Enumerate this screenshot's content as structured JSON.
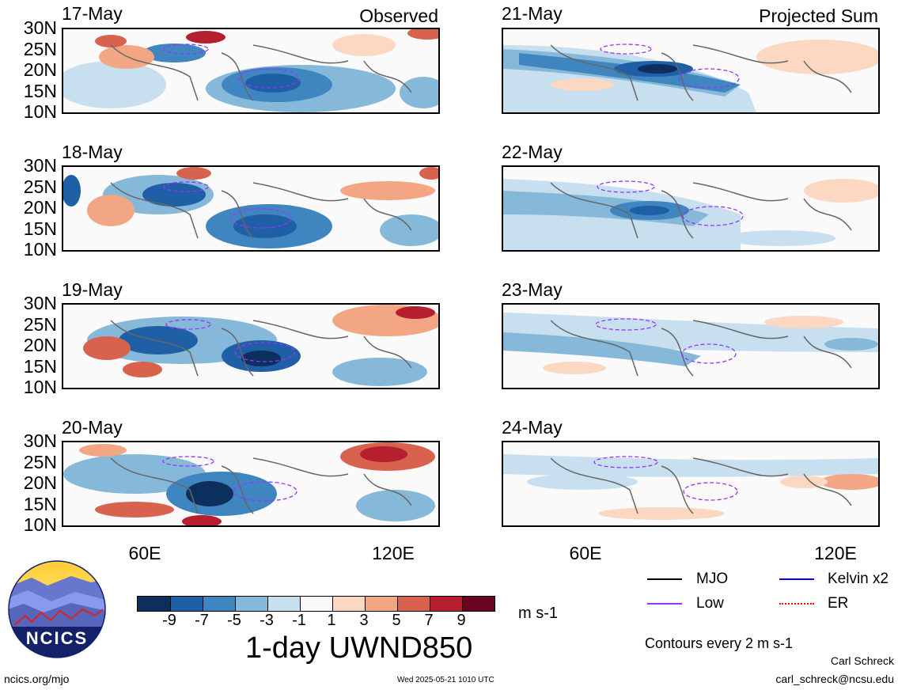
{
  "observed_label": "Observed",
  "projected_label": "Projected Sum",
  "panels_observed": [
    {
      "date": "17-May"
    },
    {
      "date": "18-May"
    },
    {
      "date": "19-May"
    },
    {
      "date": "20-May"
    }
  ],
  "panels_projected": [
    {
      "date": "21-May"
    },
    {
      "date": "22-May"
    },
    {
      "date": "23-May"
    },
    {
      "date": "24-May"
    }
  ],
  "lat_labels": [
    "30N",
    "25N",
    "20N",
    "15N",
    "10N"
  ],
  "lon_labels": [
    "60E",
    "120E"
  ],
  "colorbar": {
    "title": "1-day UWND850",
    "units": "m s-1",
    "tick_labels": [
      "-9",
      "-7",
      "-5",
      "-3",
      "-1",
      "1",
      "3",
      "5",
      "7",
      "9"
    ],
    "colors": [
      "#0c2f5d",
      "#1f5fa5",
      "#3f86c0",
      "#86b9d9",
      "#c7dfee",
      "#f8f8f8",
      "#fcd8c3",
      "#f2a684",
      "#d9624f",
      "#b61f2e",
      "#6a0220"
    ]
  },
  "legend": {
    "items": [
      {
        "label": "MJO",
        "color": "#000000",
        "style": "solid"
      },
      {
        "label": "Kelvin x2",
        "color": "#0000ff",
        "style": "solid"
      },
      {
        "label": "Low",
        "color": "#9933ff",
        "style": "solid"
      },
      {
        "label": "ER",
        "color": "#ff0000",
        "style": "dotted"
      }
    ],
    "contours_note": "Contours every 2 m s-1"
  },
  "credits": {
    "author": "Carl Schreck",
    "email": "carl_schreck@ncsu.edu",
    "url": "ncics.org/mjo",
    "timestamp": "Wed 2025-05-21 1010 UTC"
  },
  "logo": {
    "text": "NCICS"
  }
}
